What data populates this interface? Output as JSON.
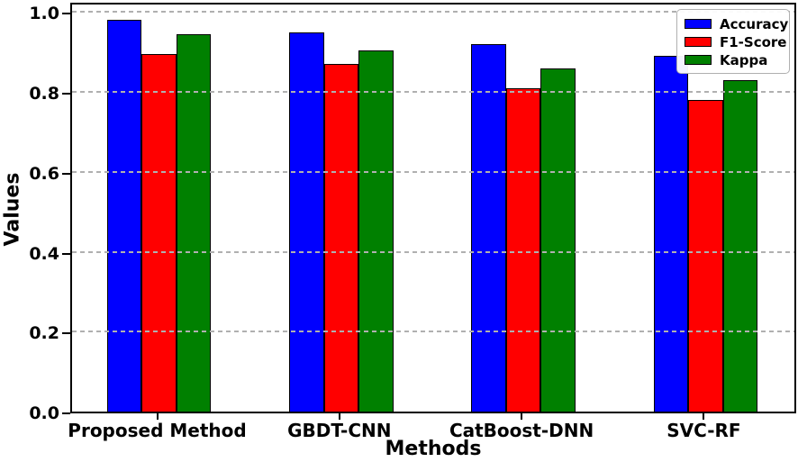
{
  "chart_data": {
    "type": "bar",
    "title": "",
    "xlabel": "Methods",
    "ylabel": "Values",
    "categories": [
      "Proposed Method",
      "GBDT-CNN",
      "CatBoost-DNN",
      "SVC-RF"
    ],
    "series": [
      {
        "name": "Accuracy",
        "color": "#0000ff",
        "values": [
          0.98,
          0.95,
          0.92,
          0.89
        ]
      },
      {
        "name": "F1-Score",
        "color": "#ff0000",
        "values": [
          0.895,
          0.87,
          0.81,
          0.78
        ]
      },
      {
        "name": "Kappa",
        "color": "#008000",
        "values": [
          0.945,
          0.905,
          0.86,
          0.83
        ]
      }
    ],
    "ylim": [
      0.0,
      1.028
    ],
    "yticks": [
      0,
      0.2,
      0.4,
      0.6,
      0.8,
      1.0
    ],
    "ytick_labels": [
      "0.0",
      "0.2",
      "0.4",
      "0.6",
      "0.8",
      "1.0"
    ],
    "grid": {
      "axis": "y",
      "style": "dashed",
      "color": "#b0b0b0",
      "above_bars": true
    },
    "legend": {
      "position": "upper-right",
      "entries": [
        "Accuracy",
        "F1-Score",
        "Kappa"
      ]
    },
    "bar_edge_color": "#000000"
  }
}
